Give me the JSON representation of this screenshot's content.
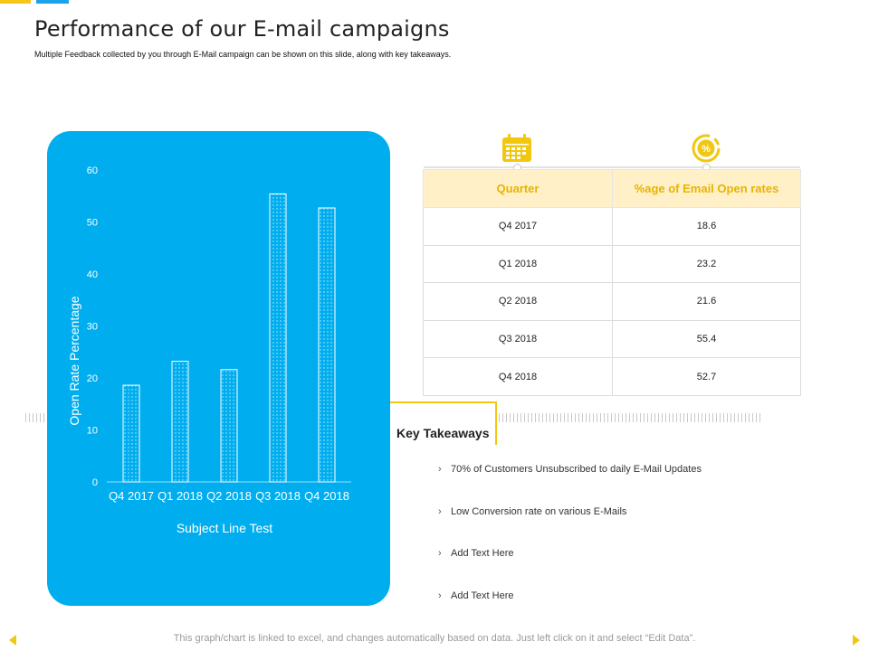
{
  "slide": {
    "title": "Performance of our E-mail campaigns",
    "subtitle": "Multiple Feedback collected by you through E-Mail campaign can be shown on this slide, along with key takeaways.",
    "footer_note": "This graph/chart is linked to excel, and changes automatically based on data. Just left click on it and select “Edit Data”."
  },
  "icons": {
    "quarter": "calendar-icon",
    "open_rate": "percent-icon"
  },
  "colors": {
    "panel": "#00aeef",
    "accent": "#f2c70f",
    "header_bg": "#fff0c8",
    "header_text": "#e8b400"
  },
  "chart_data": {
    "type": "bar",
    "categories": [
      "Q4 2017",
      "Q1 2018",
      "Q2 2018",
      "Q3 2018",
      "Q4 2018"
    ],
    "values": [
      18.6,
      23.2,
      21.6,
      55.4,
      52.7
    ],
    "xlabel": "Subject Line Test",
    "ylabel": "Open Rate Percentage",
    "ylim": [
      0,
      60
    ],
    "yticks": [
      0,
      10,
      20,
      30,
      40,
      50,
      60
    ],
    "grid": false
  },
  "table": {
    "headers": [
      "Quarter",
      "%age of Email Open rates"
    ],
    "rows": [
      [
        "Q4 2017",
        "18.6"
      ],
      [
        "Q1 2018",
        "23.2"
      ],
      [
        "Q2 2018",
        "21.6"
      ],
      [
        "Q3 2018",
        "55.4"
      ],
      [
        "Q4 2018",
        "52.7"
      ]
    ]
  },
  "takeaways": {
    "title": "Key Takeaways",
    "bullet_symbol": "›",
    "items": [
      "70% of Customers Unsubscribed to daily E-Mail Updates",
      "Low Conversion rate on various E-Mails",
      "Add Text Here",
      "Add Text Here"
    ]
  }
}
